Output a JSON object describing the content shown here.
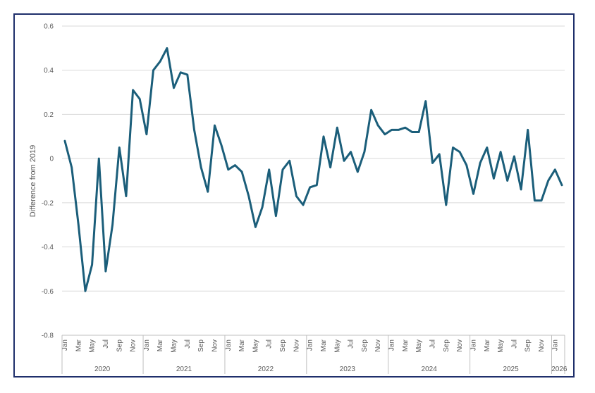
{
  "chart_data": {
    "type": "line",
    "title": "",
    "xlabel": "",
    "ylabel": "Difference from 2019",
    "ylim": [
      -0.8,
      0.6
    ],
    "yticks": [
      "0.6",
      "0.4",
      "0.2",
      "0",
      "-0.2",
      "-0.4",
      "-0.6",
      "-0.8"
    ],
    "grid": true,
    "line_color": "#1b5e7a",
    "years": [
      "2020",
      "2021",
      "2022",
      "2023",
      "2024",
      "2025",
      "2026"
    ],
    "month_labels": [
      "Jan",
      "Mar",
      "May",
      "Jul",
      "Sep",
      "Nov"
    ],
    "series": [
      {
        "values": [
          0.08,
          -0.04,
          -0.3,
          -0.6,
          -0.48,
          0.0,
          -0.51,
          -0.3,
          0.05,
          -0.17,
          0.31,
          0.27,
          0.11,
          0.4,
          0.44,
          0.5,
          0.32,
          0.39,
          0.38,
          0.13,
          -0.04,
          -0.15,
          0.15,
          0.06,
          -0.05,
          -0.03,
          -0.06,
          -0.17,
          -0.31,
          -0.22,
          -0.05,
          -0.26,
          -0.05,
          -0.01,
          -0.17,
          -0.21,
          -0.13,
          -0.12,
          0.1,
          -0.04,
          0.14,
          -0.01,
          0.03,
          -0.06,
          0.03,
          0.22,
          0.15,
          0.11,
          0.13,
          0.13,
          0.14,
          0.12,
          0.12,
          0.26,
          -0.02,
          0.02,
          -0.21,
          0.05,
          0.03,
          -0.03,
          -0.16,
          -0.02,
          0.05,
          -0.09,
          0.03,
          -0.1,
          0.01,
          -0.14,
          0.13,
          -0.19,
          -0.19,
          -0.1,
          -0.05,
          -0.12
        ]
      }
    ]
  }
}
